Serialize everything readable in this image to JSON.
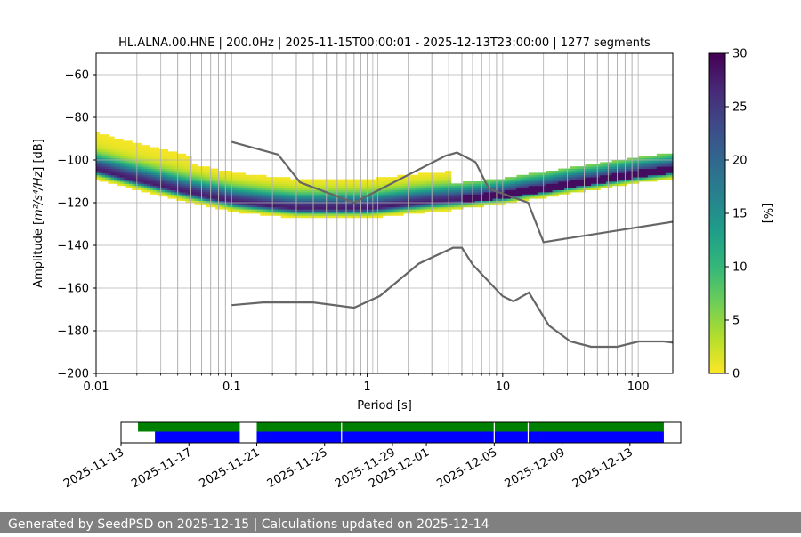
{
  "chart_data": [
    {
      "type": "heatmap",
      "title": "HL.ALNA.00.HNE | 200.0Hz | 2025-11-15T00:00:01 - 2025-12-13T23:00:00 | 1277 segments",
      "xlabel": "Period [s]",
      "ylabel_prefix": "Amplitude [",
      "ylabel_unit": "m²/s⁴/Hz",
      "ylabel_suffix": "] [dB]",
      "x_scale": "log",
      "xlim": [
        0.01,
        180
      ],
      "ylim": [
        -200,
        -50
      ],
      "x_ticks": [
        0.01,
        0.1,
        1,
        10,
        100
      ],
      "x_tick_labels": [
        "0.01",
        "0.1",
        "1",
        "10",
        "100"
      ],
      "y_ticks": [
        -200,
        -180,
        -160,
        -140,
        -120,
        -100,
        -80,
        -60
      ],
      "y_tick_labels": [
        "−200",
        "−180",
        "−160",
        "−140",
        "−120",
        "−100",
        "−80",
        "−60"
      ],
      "grid": true,
      "colorbar": {
        "label": "[%]",
        "range": [
          0,
          30
        ],
        "ticks": [
          0,
          5,
          10,
          15,
          20,
          25,
          30
        ],
        "tick_labels": [
          "0",
          "5",
          "10",
          "15",
          "20",
          "25",
          "30"
        ],
        "colormap": "viridis_r"
      },
      "psd_mode": {
        "period": [
          0.01,
          0.02,
          0.05,
          0.1,
          0.2,
          0.3,
          0.5,
          1,
          2,
          3,
          5,
          7,
          10,
          15,
          20,
          30,
          50,
          100,
          180
        ],
        "amplitude": [
          -105,
          -110,
          -116,
          -120,
          -122,
          -123,
          -123,
          -123,
          -121,
          -120,
          -119,
          -118,
          -117,
          -115,
          -114,
          -112,
          -110,
          -107,
          -105
        ]
      },
      "nhnm": {
        "period": [
          0.1,
          0.22,
          0.32,
          0.8,
          3.8,
          4.6,
          6.3,
          7.9,
          15.4,
          20,
          354.8
        ],
        "amplitude": [
          -91.5,
          -97.4,
          -110.5,
          -120,
          -98,
          -96.5,
          -101,
          -113.5,
          -120,
          -138.5,
          -126
        ]
      },
      "nlnm": {
        "period": [
          0.1,
          0.17,
          0.4,
          0.8,
          1.24,
          2.4,
          4.3,
          5,
          6,
          10,
          12,
          15.6,
          21.9,
          31.6,
          45,
          70,
          101,
          154,
          328,
          600
        ],
        "amplitude": [
          -168,
          -166.7,
          -166.7,
          -169.2,
          -163.7,
          -148.6,
          -141.1,
          -141.1,
          -149,
          -163.8,
          -166.2,
          -162.1,
          -177.5,
          -185,
          -187.5,
          -187.5,
          -185,
          -185,
          -187.5,
          -184.4
        ]
      },
      "spectral_lines": [
        0.04,
        0.05,
        0.06,
        0.07,
        0.08,
        0.09,
        0.3,
        0.4,
        0.5,
        0.6,
        0.7,
        0.8,
        0.9,
        1.0,
        1.1,
        1.2,
        3,
        4,
        5,
        6,
        7,
        8,
        9,
        40,
        50,
        60,
        70,
        80,
        90
      ]
    },
    {
      "type": "bar",
      "x_ticks": [
        "2025-11-13",
        "2025-11-17",
        "2025-11-21",
        "2025-11-25",
        "2025-11-29",
        "2025-12-01",
        "2025-12-05",
        "2025-12-09",
        "2025-12-13"
      ],
      "xlim": [
        "2025-11-13",
        "2025-12-16"
      ],
      "data_available": [
        {
          "start": "2025-11-14",
          "end": "2025-11-20"
        },
        {
          "start": "2025-11-21",
          "end": "2025-12-15"
        }
      ],
      "data_used": [
        {
          "start": "2025-11-15",
          "end": "2025-11-20"
        },
        {
          "start": "2025-11-21",
          "end": "2025-12-15"
        }
      ],
      "gaps": [
        "2025-11-26",
        "2025-12-05",
        "2025-12-07"
      ],
      "colors": {
        "available": "#008000",
        "used": "#0000ff",
        "gap": "#ffffff"
      }
    }
  ],
  "footer": "Generated by SeedPSD on 2025-12-15 | Calculations updated on 2025-12-14"
}
